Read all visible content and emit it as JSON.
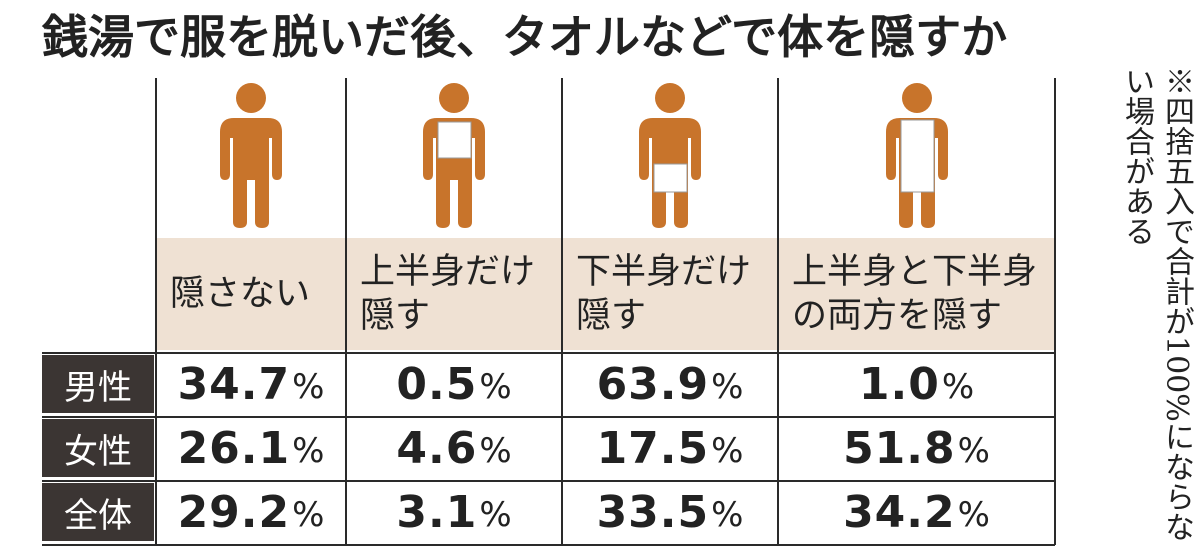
{
  "title": "銭湯で服を脱いだ後、タオルなどで体を隠すか",
  "note": "※四捨五入で合計が100%にならない場合がある",
  "colors": {
    "figure": "#c8742b",
    "label_bg": "#efe1d3",
    "row_head_bg": "#3b3533",
    "towel": "#ffffff"
  },
  "chart_data": {
    "type": "table",
    "columns": [
      {
        "label_lines": [
          "隠さない"
        ],
        "icon": "person-no-cover-icon"
      },
      {
        "label_lines": [
          "上半身だけ",
          "隠す"
        ],
        "icon": "person-upper-cover-icon"
      },
      {
        "label_lines": [
          "下半身だけ",
          "隠す"
        ],
        "icon": "person-lower-cover-icon"
      },
      {
        "label_lines": [
          "上半身と下半身",
          "の両方を隠す"
        ],
        "icon": "person-full-cover-icon"
      }
    ],
    "unit": "%",
    "rows": [
      {
        "label": "男性",
        "values": [
          "34.7",
          "0.5",
          "63.9",
          "1.0"
        ]
      },
      {
        "label": "女性",
        "values": [
          "26.1",
          "4.6",
          "17.5",
          "51.8"
        ]
      },
      {
        "label": "全体",
        "values": [
          "29.2",
          "3.1",
          "33.5",
          "34.2"
        ]
      }
    ]
  }
}
